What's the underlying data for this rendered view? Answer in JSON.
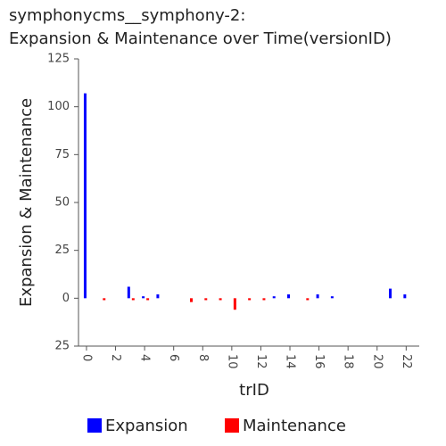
{
  "chart_data": {
    "type": "bar",
    "title": [
      "symphonycms__symphony-2:",
      "Expansion & Maintenance over Time(versionID)"
    ],
    "x_label": "trID",
    "y_label": "Expansion & Maintenance",
    "x": [
      0,
      1,
      2,
      3,
      4,
      5,
      6,
      7,
      8,
      9,
      10,
      11,
      12,
      13,
      14,
      15,
      16,
      17,
      18,
      19,
      20,
      21,
      22
    ],
    "series": [
      {
        "name": "Expansion",
        "color": "#0000ff",
        "values": [
          107,
          0,
          0,
          6,
          1,
          2,
          0,
          0,
          0,
          0,
          0,
          0,
          0,
          1,
          2,
          0,
          2,
          1,
          0,
          0,
          0,
          5,
          2
        ]
      },
      {
        "name": "Maintenance",
        "color": "#ff0000",
        "values": [
          0,
          -1,
          0,
          -1,
          -1,
          0,
          0,
          -2,
          -1,
          -1,
          -6,
          -1,
          -1,
          0,
          0,
          -1,
          0,
          0,
          0,
          0,
          0,
          0,
          0
        ]
      }
    ],
    "xlim": [
      -0.55,
      22.9
    ],
    "xticks": [
      0,
      2,
      4,
      6,
      8,
      10,
      12,
      14,
      16,
      18,
      20,
      22
    ],
    "ylim": [
      -25,
      125
    ],
    "yticks": [
      {
        "value": -25,
        "label": "25"
      },
      0,
      25,
      50,
      75,
      100,
      125
    ],
    "legend": "bottom"
  }
}
